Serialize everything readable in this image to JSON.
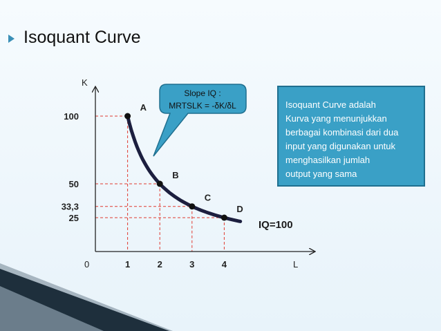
{
  "slide": {
    "title": "Isoquant Curve",
    "info_box_lines": [
      "Isoquant Curve adalah",
      "Kurva yang menunjukkan",
      "berbagai kombinasi dari dua",
      "input yang digunakan untuk",
      "menghasilkan jumlah",
      "output yang sama"
    ],
    "callout_lines": [
      "Slope IQ :",
      "MRTSLK = -δK/δL"
    ]
  },
  "colors": {
    "curve": "#1c1f3f",
    "guide_lines": "#e0392f",
    "info_box": "#3aa0c6",
    "callout": "#3aa0c6",
    "bullet": "#3a8fb7"
  },
  "chart_data": {
    "type": "line",
    "xlabel": "L",
    "ylabel": "K",
    "origin_label": "0",
    "x_ticks": [
      "1",
      "2",
      "3",
      "4"
    ],
    "y_ticks": [
      "100",
      "50",
      "33,3",
      "25"
    ],
    "series": [
      {
        "name": "IQ=100",
        "points": [
          {
            "label": "A",
            "x": 1,
            "y": 100
          },
          {
            "label": "B",
            "x": 2,
            "y": 50
          },
          {
            "label": "C",
            "x": 3,
            "y": 33.3
          },
          {
            "label": "D",
            "x": 4,
            "y": 25
          }
        ]
      }
    ],
    "xlim": [
      0,
      5.6
    ],
    "ylim": [
      0,
      115
    ]
  }
}
